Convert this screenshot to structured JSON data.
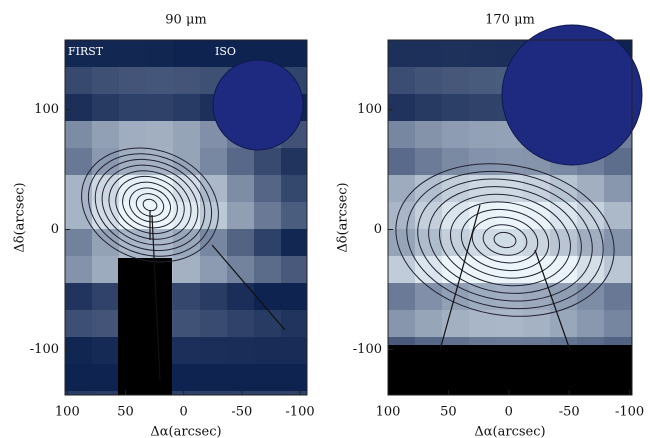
{
  "chart_data": [
    {
      "type": "image",
      "title": "90 μm",
      "xlabel": "Δα(arcsec)",
      "ylabel": "Δδ(arcsec)",
      "xlim": [
        102,
        -106
      ],
      "ylim": [
        158,
        -138
      ],
      "xticks": [
        100,
        50,
        0,
        -50,
        -100
      ],
      "yticks": [
        100,
        0,
        -100
      ],
      "annotations": [
        "FIRST",
        "ISO"
      ]
    },
    {
      "type": "image",
      "title": "170 μm",
      "xlabel": "Δα(arcsec)",
      "ylabel": "Δδ(arcsec)",
      "xlim": [
        100,
        -102
      ],
      "ylim": [
        158,
        -138
      ],
      "xticks": [
        100,
        50,
        0,
        -50,
        -100
      ],
      "yticks": [
        100,
        0,
        -100
      ]
    }
  ]
}
